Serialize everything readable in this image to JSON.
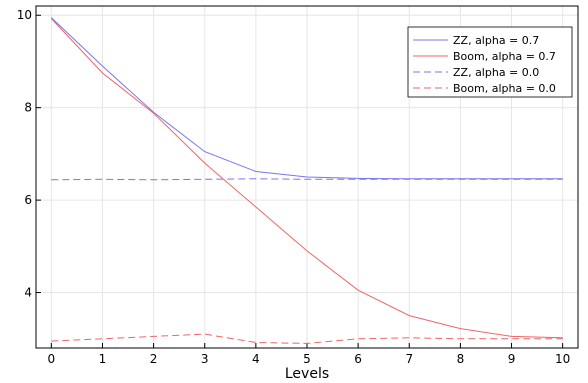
{
  "chart_data": {
    "type": "line",
    "title": "",
    "xlabel": "Levels",
    "ylabel": "",
    "x": [
      0,
      1,
      2,
      3,
      4,
      5,
      6,
      7,
      8,
      9,
      10
    ],
    "xlim": [
      -0.3,
      10.3
    ],
    "ylim": [
      2.8,
      10.2
    ],
    "xticks": [
      0,
      1,
      2,
      3,
      4,
      5,
      6,
      7,
      8,
      9,
      10
    ],
    "yticks": [
      4,
      6,
      8,
      10
    ],
    "grid": true,
    "legend_position": "top-right",
    "series": [
      {
        "name": "ZZ, alpha = 0.7",
        "color": "#7777ee",
        "dash": "solid",
        "values": [
          9.95,
          8.9,
          7.9,
          7.05,
          6.62,
          6.5,
          6.47,
          6.46,
          6.46,
          6.46,
          6.46
        ]
      },
      {
        "name": "Boom, alpha = 0.7",
        "color": "#ee6666",
        "dash": "solid",
        "values": [
          9.93,
          8.75,
          7.88,
          6.8,
          5.85,
          4.9,
          4.05,
          3.5,
          3.22,
          3.05,
          3.02
        ]
      },
      {
        "name": "ZZ, alpha = 0.0",
        "color": "#7777ee",
        "dash": "dashed",
        "values": [
          6.44,
          6.45,
          6.44,
          6.45,
          6.46,
          6.45,
          6.45,
          6.45,
          6.45,
          6.45,
          6.45
        ]
      },
      {
        "name": "Boom, alpha = 0.0",
        "color": "#ee6666",
        "dash": "dashed",
        "values": [
          2.95,
          3.0,
          3.05,
          3.1,
          2.92,
          2.9,
          3.0,
          3.02,
          3.0,
          3.0,
          3.0
        ]
      }
    ]
  }
}
